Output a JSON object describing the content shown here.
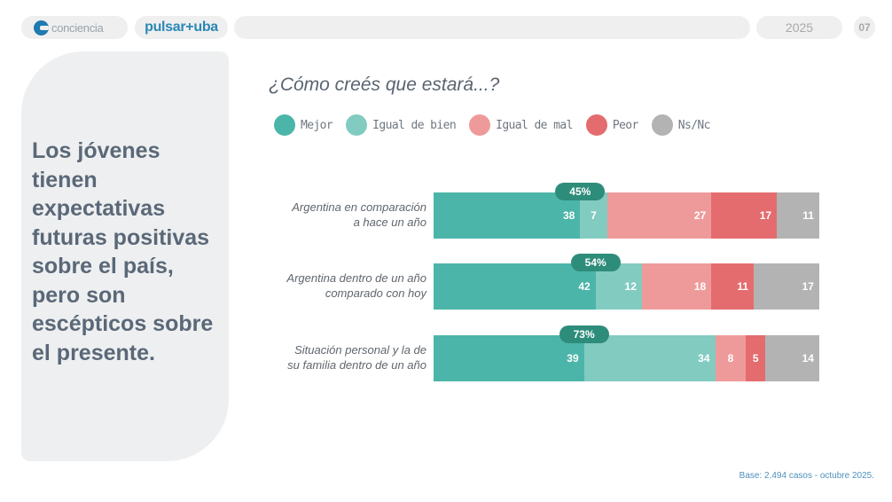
{
  "header": {
    "brand_primary": "conciencia",
    "brand_secondary": "pulsar+uba",
    "year": "2025",
    "page_number": "07"
  },
  "sidebar": {
    "headline": "Los jóvenes tienen expectativas futuras positivas sobre el país, pero son escépticos sobre el presente."
  },
  "footer": {
    "note": "Base: 2.494 casos - octubre 2025."
  },
  "chart_data": {
    "type": "bar",
    "orientation": "horizontal-stacked-100",
    "title": "¿Cómo creés que estará...?",
    "legend_position": "top-left",
    "series": [
      {
        "name": "Mejor",
        "color": "#4cb5a9",
        "values": [
          38,
          42,
          39
        ]
      },
      {
        "name": "Igual de bien",
        "color": "#82cbc1",
        "values": [
          7,
          12,
          34
        ]
      },
      {
        "name": "Igual de mal",
        "color": "#ef9a9a",
        "values": [
          27,
          18,
          8
        ]
      },
      {
        "name": "Peor",
        "color": "#e46c6e",
        "values": [
          17,
          11,
          5
        ]
      },
      {
        "name": "Ns/Nc",
        "color": "#b3b3b3",
        "values": [
          11,
          17,
          14
        ]
      }
    ],
    "categories": [
      "Argentina en comparación a hace un año",
      "Argentina dentro de un año comparado con hoy",
      "Situación personal y la de su familia dentro de un año"
    ],
    "category_lines": [
      [
        "Argentina en comparación",
        "a hace un año"
      ],
      [
        "Argentina dentro de un año",
        "comparado con hoy"
      ],
      [
        "Situación personal y la de",
        "su familia dentro de un año"
      ]
    ],
    "positive_totals": [
      "45%",
      "54%",
      "73%"
    ],
    "xlim": [
      0,
      100
    ]
  }
}
